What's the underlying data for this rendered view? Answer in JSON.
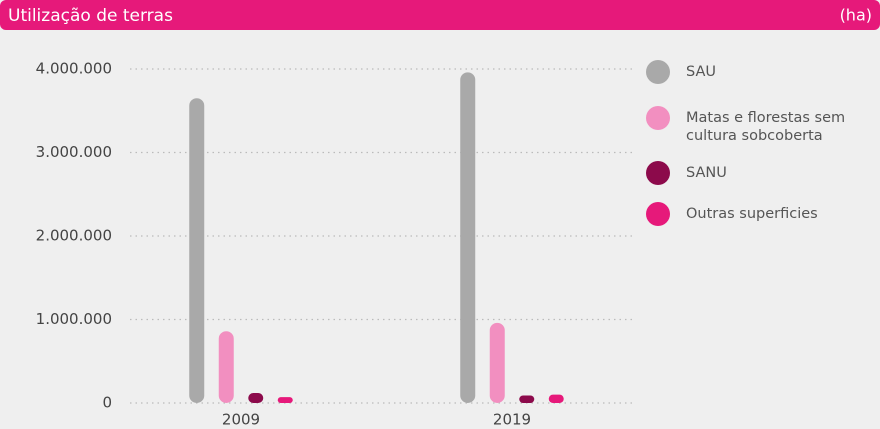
{
  "chart_data": {
    "type": "bar",
    "title": "Utilização de terras",
    "unit_label": "(ha)",
    "categories": [
      "2009",
      "2019"
    ],
    "series": [
      {
        "name": "SAU",
        "color": "#a9a9a9",
        "values": [
          3650000,
          3960000
        ]
      },
      {
        "name": "Matas e florestas sem cultura sobcoberta",
        "color": "#f28fc0",
        "values": [
          860000,
          960000
        ]
      },
      {
        "name": "SANU",
        "color": "#8c0a4b",
        "values": [
          120000,
          90000
        ]
      },
      {
        "name": "Outras superficies",
        "color": "#e6197a",
        "values": [
          70000,
          100000
        ]
      }
    ],
    "ylim": [
      0,
      4000000
    ],
    "yticks": [
      0,
      {
        "value": 1000000,
        "label": "1.000.000"
      },
      {
        "value": 2000000,
        "label": "2.000.000"
      },
      {
        "value": 3000000,
        "label": "3.000.000"
      },
      {
        "value": 4000000,
        "label": "4.000.000"
      }
    ],
    "grid": true
  }
}
